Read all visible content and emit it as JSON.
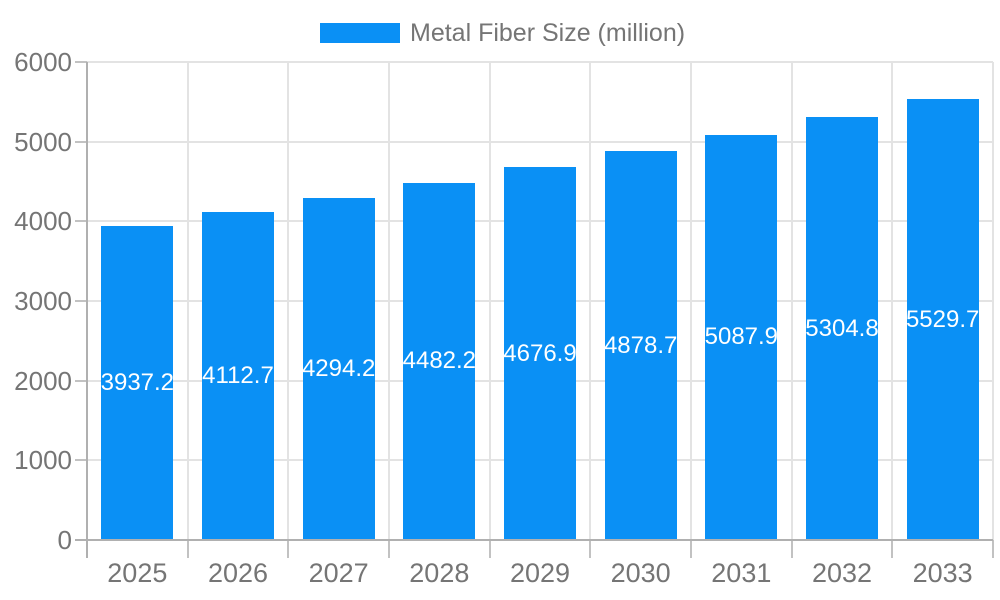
{
  "chart_data": {
    "type": "bar",
    "title": "",
    "legend": "Metal Fiber Size (million)",
    "legend_position": "top",
    "series_name": "Metal Fiber Size (million)",
    "categories": [
      "2025",
      "2026",
      "2027",
      "2028",
      "2029",
      "2030",
      "2031",
      "2032",
      "2033"
    ],
    "values": [
      3937.2,
      4112.7,
      4294.2,
      4482.2,
      4676.9,
      4878.7,
      5087.9,
      5304.8,
      5529.7
    ],
    "value_labels": [
      "3937.2",
      "4112.7",
      "4294.2",
      "4482.2",
      "4676.9",
      "4878.7",
      "5087.9",
      "5304.8",
      "5529.7"
    ],
    "xlabel": "",
    "ylabel": "",
    "ylim": [
      0,
      6000
    ],
    "y_ticks": [
      0,
      1000,
      2000,
      3000,
      4000,
      5000,
      6000
    ],
    "grid": true,
    "bar_color": "#0A90F5"
  },
  "colors": {
    "bar": "#0A90F5",
    "gridline": "#e3e3e3",
    "axis_line": "#b0b0b0",
    "tick_mark": "#c2c2c2",
    "label_text": "#757575",
    "value_text": "#ffffff",
    "background": "#ffffff"
  }
}
